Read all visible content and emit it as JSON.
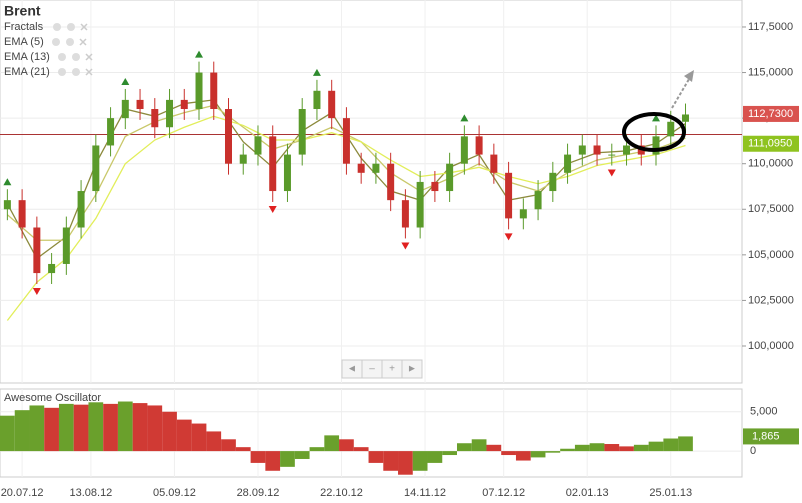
{
  "chart_data": {
    "type": "candlestick",
    "title": "Brent",
    "indicators": [
      "Fractals",
      "EMA (5)",
      "EMA (13)",
      "EMA (21)"
    ],
    "nav": [
      "◄",
      "–",
      "+",
      "►"
    ],
    "xlim": [
      -4.5,
      146.5
    ],
    "xticks": [
      {
        "value": 0,
        "label": "20.07.12"
      },
      {
        "value": 14,
        "label": "13.08.12"
      },
      {
        "value": 31,
        "label": "05.09.12"
      },
      {
        "value": 48,
        "label": "28.09.12"
      },
      {
        "value": 65,
        "label": "22.10.12"
      },
      {
        "value": 82,
        "label": "14.11.12"
      },
      {
        "value": 98,
        "label": "07.12.12"
      },
      {
        "value": 115,
        "label": "02.01.13"
      },
      {
        "value": 132,
        "label": "25.01.13"
      }
    ],
    "ylim": [
      97.97,
      118.98
    ],
    "yticks": [
      {
        "value": 100,
        "label": "100,0000"
      },
      {
        "value": 102.5,
        "label": "102,5000"
      },
      {
        "value": 105,
        "label": "105,0000"
      },
      {
        "value": 107.5,
        "label": "107,5000"
      },
      {
        "value": 110,
        "label": "110,0000"
      },
      {
        "value": 112.5,
        "label": "112,5000"
      },
      {
        "value": 115,
        "label": "115,0000"
      },
      {
        "value": 117.5,
        "label": "117,5000"
      }
    ],
    "grid": true,
    "hline": 111.6,
    "candles": {
      "x": [
        -3,
        0,
        3,
        6,
        9,
        12,
        15,
        18,
        21,
        24,
        27,
        30,
        33,
        36,
        39,
        42,
        45,
        48,
        51,
        54,
        57,
        60,
        63,
        66,
        69,
        72,
        75,
        78,
        81,
        84,
        87,
        90,
        93,
        96,
        99,
        102,
        105,
        108,
        111,
        114,
        117,
        120,
        123,
        126,
        129,
        132,
        135
      ],
      "open": [
        107.5,
        108,
        106.5,
        104,
        104.5,
        106.5,
        108.5,
        111,
        112.5,
        113.5,
        113,
        112,
        113.5,
        113,
        115,
        113,
        110,
        110.5,
        111.5,
        108.5,
        110.5,
        113,
        114,
        112.5,
        110,
        109.5,
        110,
        108,
        106.5,
        109,
        108.5,
        110,
        111.5,
        110.5,
        109.5,
        107,
        107.5,
        108.5,
        109.5,
        110.5,
        111,
        110.5,
        110.5,
        111,
        110.5,
        111.5,
        112.3
      ],
      "high": [
        108.6,
        108.6,
        107.1,
        105.1,
        107.1,
        109.1,
        111.6,
        113.1,
        114.1,
        114.1,
        113.6,
        114.1,
        114.1,
        115.6,
        115.6,
        113.6,
        111.1,
        112.1,
        112.1,
        111.1,
        113.6,
        114.6,
        114.6,
        113.1,
        110.6,
        110.6,
        110.6,
        108.6,
        109.6,
        109.6,
        110.6,
        112.1,
        112.1,
        111.1,
        110.1,
        108.1,
        109.1,
        110.1,
        111.1,
        111.6,
        111.6,
        111.1,
        111.6,
        111.6,
        112.1,
        112.9,
        113.3
      ],
      "low": [
        106.9,
        105.9,
        103.4,
        103.4,
        103.9,
        105.9,
        107.9,
        110.4,
        111.9,
        112.4,
        111.4,
        111.4,
        112.4,
        112.4,
        112.4,
        109.4,
        109.4,
        109.9,
        107.9,
        107.9,
        109.9,
        112.4,
        111.9,
        109.4,
        108.9,
        108.9,
        107.4,
        105.9,
        105.9,
        107.9,
        107.9,
        109.4,
        109.9,
        108.9,
        106.4,
        106.4,
        106.9,
        107.9,
        108.9,
        109.9,
        109.9,
        109.9,
        109.9,
        109.9,
        109.9,
        110.9,
        111.7
      ],
      "close": [
        108,
        106.5,
        104,
        104.5,
        106.5,
        108.5,
        111,
        112.5,
        113.5,
        113,
        112,
        113.5,
        113,
        115,
        113,
        110,
        110.5,
        111.5,
        108.5,
        110.5,
        113,
        114,
        112.5,
        110,
        109.5,
        110,
        108,
        106.5,
        109,
        108.5,
        110,
        111.5,
        110.5,
        109.5,
        107,
        107.5,
        108.5,
        109.5,
        110.5,
        111,
        110.5,
        110.5,
        111,
        110.5,
        111.5,
        112.3,
        112.7
      ],
      "up_color": "#5a9a2a",
      "down_color": "#c9302c"
    },
    "ema_x": [
      -3,
      3,
      9,
      15,
      21,
      27,
      33,
      39,
      45,
      51,
      57,
      63,
      69,
      75,
      81,
      87,
      93,
      99,
      105,
      111,
      117,
      123,
      129,
      135
    ],
    "series": [
      {
        "name": "EMA (5)",
        "color": "#8c8a3c",
        "values": [
          107.8,
          104.8,
          106,
          110,
          113,
          112.6,
          113.3,
          113.5,
          111.2,
          109.8,
          111.8,
          112.8,
          110.3,
          108.5,
          108,
          109.8,
          110.5,
          108,
          108.3,
          110,
          110.6,
          110.7,
          111.1,
          112.2
        ]
      },
      {
        "name": "EMA (13)",
        "color": "#c9c86a",
        "values": [
          107.2,
          105.8,
          105.8,
          108.3,
          111.5,
          112.3,
          112.8,
          113.2,
          112,
          110.8,
          111.3,
          112,
          111.2,
          109.5,
          108.5,
          109.2,
          110,
          109,
          108.5,
          109.5,
          110.2,
          110.5,
          110.8,
          111.4
        ]
      },
      {
        "name": "EMA (21)",
        "color": "#e2ee5a",
        "values": [
          101.4,
          103.5,
          104.8,
          107,
          110,
          111.3,
          112,
          112.6,
          112.1,
          111.3,
          111.3,
          111.7,
          111.2,
          110.2,
          109.3,
          109.5,
          109.8,
          109.3,
          108.9,
          109.3,
          109.9,
          110.2,
          110.5,
          111
        ]
      }
    ],
    "fractals_up": {
      "x": [
        -3,
        21,
        36,
        60,
        90,
        129
      ],
      "values": [
        108.6,
        114.1,
        115.6,
        114.6,
        112.1,
        112.1
      ]
    },
    "fractals_down": {
      "x": [
        3,
        51,
        78,
        99,
        120
      ],
      "values": [
        103.4,
        107.9,
        105.9,
        106.4,
        109.9
      ]
    },
    "price_labels": [
      {
        "value": 112.73,
        "label": "112,7300",
        "color": "#d9534f"
      },
      {
        "value": 111.095,
        "label": "111,0950",
        "color": "#8fc31f"
      }
    ],
    "oscillator": {
      "title": "Awesome Oscillator",
      "ylim": [
        -3290,
        7890
      ],
      "yticks": [
        {
          "value": 5000,
          "label": "5,000"
        },
        0
      ],
      "values": [
        4500,
        5200,
        5800,
        5500,
        6000,
        5900,
        6200,
        6000,
        6300,
        6100,
        5800,
        5000,
        4000,
        3500,
        2500,
        1500,
        500,
        -1500,
        -2500,
        -2000,
        -1000,
        500,
        2000,
        1500,
        500,
        -1500,
        -2500,
        -3000,
        -2500,
        -1500,
        -500,
        1000,
        1500,
        800,
        -500,
        -1200,
        -800,
        -200,
        300,
        800,
        1000,
        900,
        600,
        800,
        1200,
        1600,
        1865
      ],
      "value_labels": {
        "46": "1,865"
      },
      "up_color": "#6aa02c",
      "down_color": "#d03a34"
    }
  }
}
